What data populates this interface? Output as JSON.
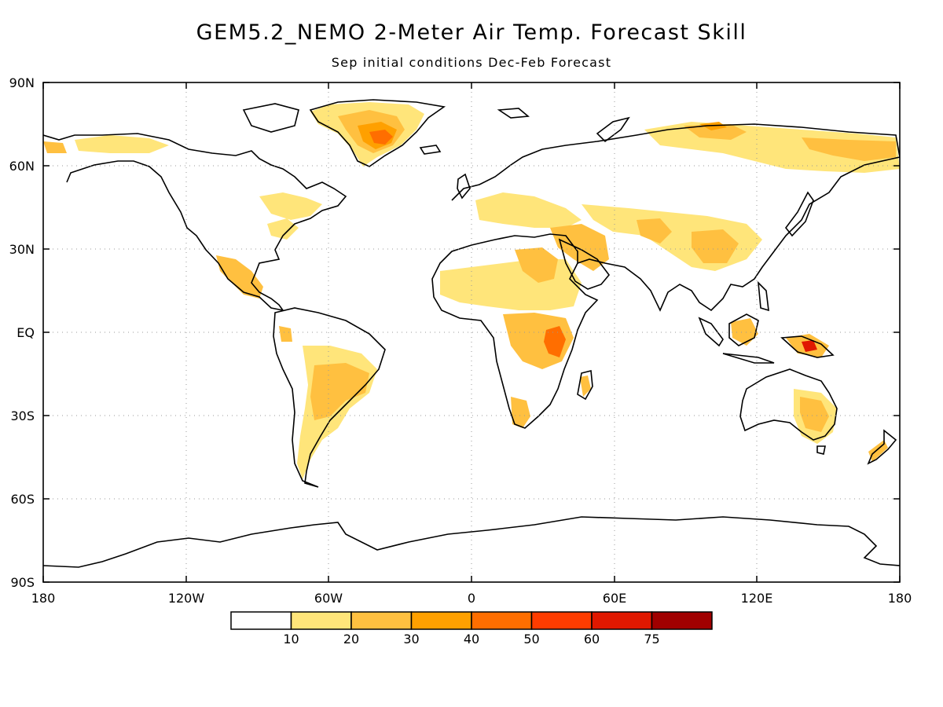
{
  "title": "GEM5.2_NEMO 2-Meter Air Temp. Forecast Skill",
  "subtitle": "Sep initial conditions  Dec-Feb Forecast",
  "map": {
    "projection": "equirectangular",
    "lon_range": [
      -180,
      180
    ],
    "lat_range": [
      -90,
      90
    ],
    "lat_labels": [
      "90N",
      "60N",
      "30N",
      "EQ",
      "30S",
      "60S",
      "90S"
    ],
    "lon_labels": [
      "180",
      "120W",
      "60W",
      "0",
      "60E",
      "120E",
      "180"
    ],
    "gridlines": "dotted",
    "regions": [
      {
        "name": "Greenland",
        "level": "40-50"
      },
      {
        "name": "Siberia",
        "level": "20-30"
      },
      {
        "name": "East Africa",
        "level": "50-60"
      },
      {
        "name": "New Guinea",
        "level": "60-75"
      },
      {
        "name": "Brazil",
        "level": "20-30"
      },
      {
        "name": "Eastern Australia",
        "level": "30-40"
      },
      {
        "name": "Mexico / Central America",
        "level": "20-30"
      },
      {
        "name": "Middle East",
        "level": "20-30"
      }
    ]
  },
  "colorbar": {
    "labels": [
      "10",
      "20",
      "30",
      "40",
      "50",
      "60",
      "75"
    ],
    "colors": [
      "#ffffff",
      "#ffe57a",
      "#ffc040",
      "#ffa000",
      "#ff6e00",
      "#ff3c00",
      "#e01800",
      "#a00000"
    ]
  }
}
